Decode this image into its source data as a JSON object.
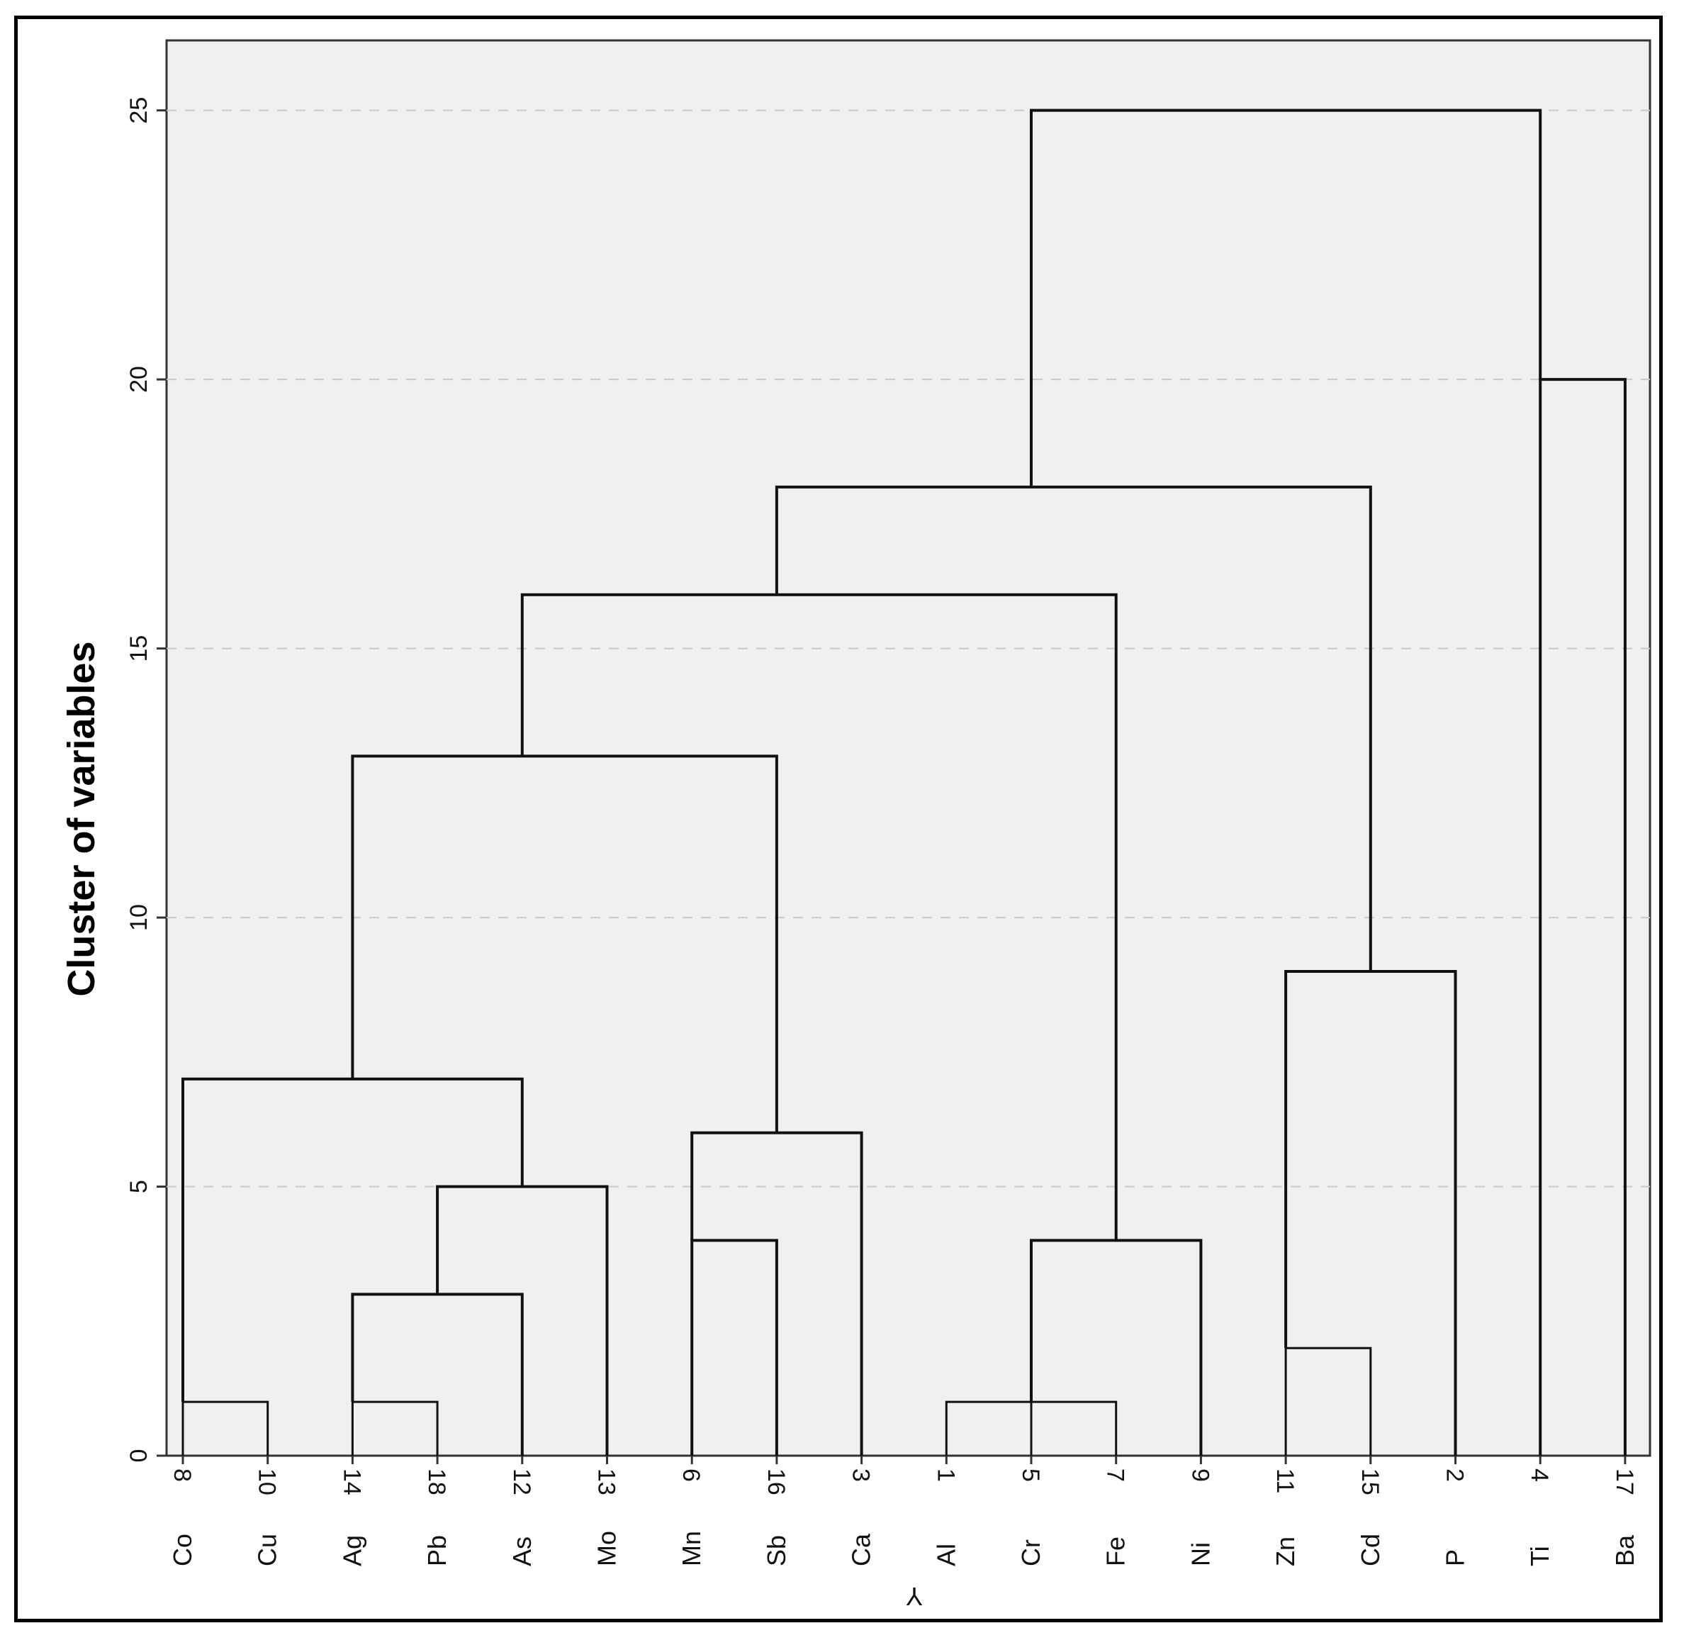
{
  "chart_data": {
    "type": "dendrogram",
    "ylabel": "Cluster of variables",
    "xlabel": "Y",
    "ylim": [
      0,
      26.3
    ],
    "yticks": [
      0,
      5,
      10,
      15,
      20,
      25
    ],
    "grid": "horizontal-dashed",
    "leaves": [
      {
        "num": "8",
        "name": "Co"
      },
      {
        "num": "10",
        "name": "Cu"
      },
      {
        "num": "14",
        "name": "Ag"
      },
      {
        "num": "18",
        "name": "Pb"
      },
      {
        "num": "12",
        "name": "As"
      },
      {
        "num": "13",
        "name": "Mo"
      },
      {
        "num": "6",
        "name": "Mn"
      },
      {
        "num": "16",
        "name": "Sb"
      },
      {
        "num": "3",
        "name": "Ca"
      },
      {
        "num": "1",
        "name": "Al"
      },
      {
        "num": "5",
        "name": "Cr"
      },
      {
        "num": "7",
        "name": "Fe"
      },
      {
        "num": "9",
        "name": "Ni"
      },
      {
        "num": "11",
        "name": "Zn"
      },
      {
        "num": "15",
        "name": "Cd"
      },
      {
        "num": "2",
        "name": "P"
      },
      {
        "num": "4",
        "name": "Ti"
      },
      {
        "num": "17",
        "name": "Ba"
      }
    ],
    "links": [
      {
        "x1": 0,
        "x2": 1,
        "y": 1,
        "y1": 0,
        "y2": 0
      },
      {
        "x1": 2,
        "x2": 3,
        "y": 1,
        "y1": 0,
        "y2": 0
      },
      {
        "x1": 9,
        "x2": 10,
        "y": 1,
        "y1": 0,
        "y2": 0
      },
      {
        "x1": 10,
        "x2": 11,
        "y": 1,
        "y1": 0,
        "y2": 0
      },
      {
        "x1": 13,
        "x2": 14,
        "y": 2,
        "y1": 0,
        "y2": 0
      },
      {
        "x1": 2,
        "x2": 4,
        "y": 3,
        "y1": 1,
        "y2": 0
      },
      {
        "x1": 6,
        "x2": 7,
        "y": 4,
        "y1": 0,
        "y2": 0
      },
      {
        "x1": 10,
        "x2": 12,
        "y": 4,
        "y1": 1,
        "y2": 0
      },
      {
        "x1": 3,
        "x2": 5,
        "y": 5,
        "y1": 3,
        "y2": 0
      },
      {
        "x1": 6,
        "x2": 8,
        "y": 6,
        "y1": 4,
        "y2": 0
      },
      {
        "x1": 0,
        "x2": 4,
        "y": 7,
        "y1": 1,
        "y2": 5
      },
      {
        "x1": 13,
        "x2": 15,
        "y": 9,
        "y1": 2,
        "y2": 0
      },
      {
        "x1": 2,
        "x2": 7,
        "y": 13,
        "y1": 7,
        "y2": 6
      },
      {
        "x1": 4,
        "x2": 11,
        "y": 16,
        "y1": 13,
        "y2": 4
      },
      {
        "x1": 7,
        "x2": 14,
        "y": 18,
        "y1": 16,
        "y2": 9
      },
      {
        "x1": 16,
        "x2": 17,
        "y": 20,
        "y1": 0,
        "y2": 0
      },
      {
        "x1": 10,
        "x2": 16,
        "y": 25,
        "y1": 18,
        "y2": 20
      }
    ]
  }
}
